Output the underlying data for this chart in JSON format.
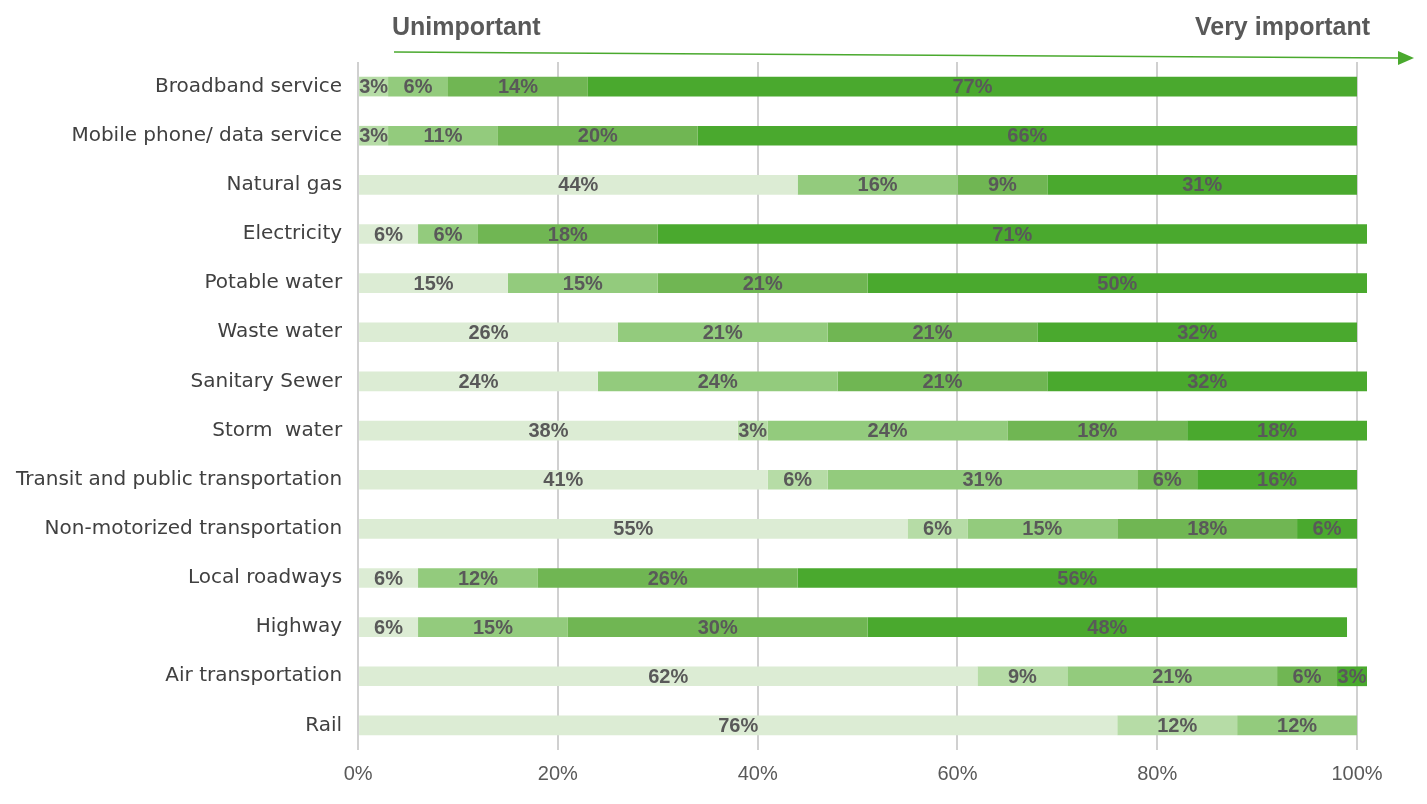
{
  "chart_data": {
    "type": "bar",
    "orientation": "horizontal",
    "stacked": true,
    "annotations": [
      "Unimportant",
      "Very important"
    ],
    "categories": [
      "Broadband service",
      "Mobile phone/ data service",
      "Natural gas",
      "Electricity",
      "Potable water",
      "Waste water",
      "Sanitary Sewer",
      "Storm  water",
      "Transit and public transportation",
      "Non-motorized transportation",
      "Local roadways",
      "Highway",
      "Air transportation",
      "Rail"
    ],
    "series": [
      {
        "color": "#dcecd4",
        "values": [
          null,
          null,
          44,
          6,
          15,
          26,
          24,
          38,
          41,
          55,
          6,
          6,
          62,
          76
        ],
        "value_labels": [
          null,
          null,
          "44%",
          "6%",
          "15%",
          "26%",
          "24%",
          "38%",
          "41%",
          "55%",
          "6%",
          "6%",
          "62%",
          "76%"
        ]
      },
      {
        "color": "#b6dca6",
        "values": [
          3,
          3,
          null,
          null,
          null,
          null,
          null,
          3,
          6,
          6,
          null,
          null,
          9,
          12
        ],
        "value_labels": [
          "3%",
          "3%",
          null,
          null,
          null,
          null,
          null,
          "3%",
          "6%",
          "6%",
          null,
          null,
          "9%",
          "12%"
        ]
      },
      {
        "color": "#93cb7d",
        "values": [
          6,
          11,
          16,
          6,
          15,
          21,
          24,
          24,
          31,
          15,
          12,
          15,
          21,
          12
        ],
        "value_labels": [
          "6%",
          "11%",
          "16%",
          "6%",
          "15%",
          "21%",
          "24%",
          "24%",
          "31%",
          "15%",
          "12%",
          "15%",
          "21%",
          "12%"
        ]
      },
      {
        "color": "#70b653",
        "values": [
          14,
          20,
          9,
          18,
          21,
          21,
          21,
          18,
          6,
          18,
          26,
          30,
          6,
          null
        ],
        "value_labels": [
          "14%",
          "20%",
          "9%",
          "18%",
          "21%",
          "21%",
          "21%",
          "18%",
          "6%",
          "18%",
          "26%",
          "30%",
          "6%",
          null
        ]
      },
      {
        "color": "#4aa92e",
        "values": [
          77,
          66,
          31,
          71,
          50,
          32,
          32,
          18,
          16,
          6,
          56,
          48,
          3,
          null
        ],
        "value_labels": [
          "77%",
          "66%",
          "31%",
          "71%",
          "50%",
          "32%",
          "32%",
          "18%",
          "16%",
          "6%",
          "56%",
          "48%",
          "3%",
          null
        ]
      }
    ],
    "xlim": [
      0,
      101
    ],
    "xticks": [
      {
        "value": 0,
        "label": "0%"
      },
      {
        "value": 20,
        "label": "20%"
      },
      {
        "value": 40,
        "label": "40%"
      },
      {
        "value": 60,
        "label": "60%"
      },
      {
        "value": 80,
        "label": "80%"
      },
      {
        "value": 100,
        "label": "100%"
      }
    ],
    "grid": "x",
    "legend": false
  }
}
